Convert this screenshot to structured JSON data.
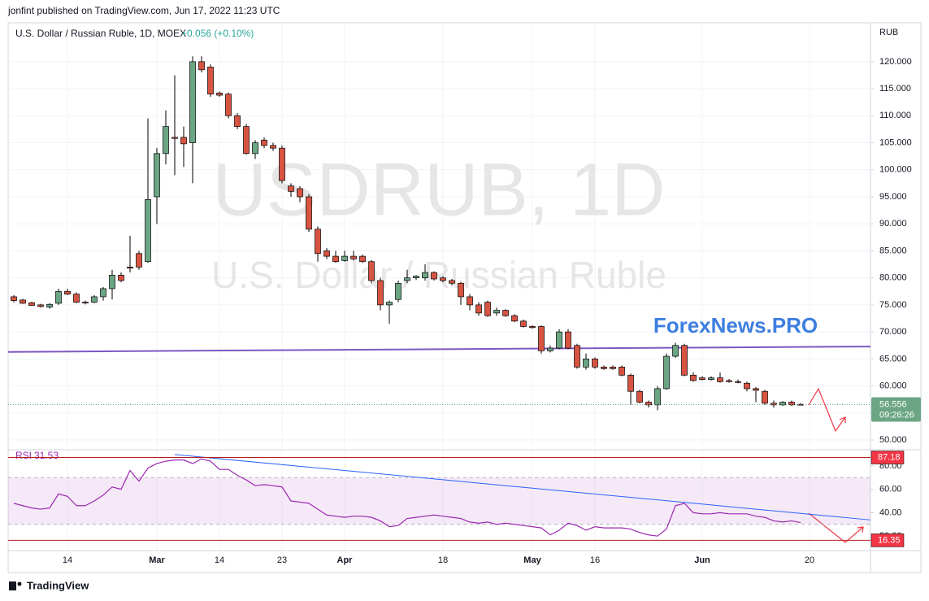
{
  "header": {
    "publisher": "jonfint published on TradingView.com, Jun 17, 2022 11:23 UTC"
  },
  "footer": {
    "logo": "TradingView"
  },
  "chart_data": [
    {
      "type": "candlestick",
      "title": "U.S. Dollar / Russian Ruble, 1D, MOEX",
      "change": "+0.056 (+0.10%)",
      "watermark": "USDRUB, 1D",
      "watermark_subtitle": "U.S. Dollar / Russian Ruble",
      "annotation": "ForexNews.PRO",
      "y_axis_label": "RUB",
      "countdown": "09:26:26",
      "up_color": "#6ba583",
      "down_color": "#d75442",
      "grid": true,
      "categories": [
        null,
        null,
        null,
        null,
        null,
        null,
        "14",
        null,
        null,
        null,
        null,
        null,
        null,
        null,
        null,
        null,
        "Mar",
        null,
        null,
        null,
        null,
        null,
        null,
        "14",
        null,
        null,
        null,
        null,
        null,
        null,
        "23",
        null,
        null,
        null,
        null,
        null,
        null,
        "Apr",
        null,
        null,
        null,
        null,
        null,
        null,
        null,
        null,
        null,
        null,
        "18",
        null,
        null,
        null,
        null,
        null,
        null,
        null,
        null,
        null,
        "May",
        null,
        null,
        null,
        null,
        null,
        null,
        "16",
        null,
        null,
        null,
        null,
        null,
        null,
        null,
        null,
        null,
        null,
        null,
        "Jun",
        null,
        null,
        null,
        null,
        null,
        null,
        null,
        null,
        null,
        null,
        null,
        "20"
      ],
      "open": [
        76.5,
        75.9,
        75.4,
        75.0,
        74.6,
        75.3,
        77.5,
        77.0,
        75.5,
        75.5,
        76.5,
        78.0,
        80.5,
        82.0,
        84.5,
        83.0,
        95.0,
        103.0,
        106.0,
        106.0,
        105.0,
        120.0,
        119.0,
        114.2,
        114.0,
        110.0,
        108.0,
        103.0,
        105.5,
        104.5,
        104.0,
        97.0,
        96.5,
        95.0,
        89.0,
        85.0,
        84.0,
        83.2,
        84.0,
        84.0,
        83.0,
        79.5,
        75.0,
        76.0,
        79.5,
        80.0,
        80.0,
        81.0,
        80.0,
        79.5,
        79.0,
        76.5,
        75.0,
        75.5,
        73.5,
        74.0,
        73.0,
        72.0,
        71.0,
        71.0,
        66.5,
        67.0,
        70.0,
        67.5,
        63.5,
        65.0,
        63.5,
        63.5,
        63.5,
        62.0,
        59.0,
        57.0,
        56.5,
        59.5,
        65.5,
        67.5,
        62.0,
        61.5,
        61.2,
        61.5,
        61.0,
        60.8,
        60.5,
        59.5,
        59.0,
        56.8,
        56.5,
        57.0,
        56.6,
        null
      ],
      "high": [
        76.8,
        76.1,
        75.6,
        75.2,
        75.3,
        78.0,
        78.0,
        77.3,
        75.8,
        76.8,
        78.3,
        81.5,
        81.0,
        87.8,
        85.0,
        109.5,
        104.0,
        111.0,
        117.5,
        108.0,
        121.0,
        121.0,
        119.5,
        114.5,
        114.3,
        110.5,
        108.5,
        105.5,
        106.0,
        105.0,
        104.5,
        97.5,
        97.0,
        95.5,
        89.5,
        85.5,
        85.0,
        85.0,
        85.0,
        84.3,
        83.3,
        80.0,
        75.8,
        79.5,
        81.5,
        80.5,
        82.5,
        81.2,
        80.3,
        79.8,
        79.3,
        77.0,
        75.5,
        75.8,
        74.5,
        74.2,
        73.3,
        72.3,
        71.2,
        71.2,
        67.5,
        70.5,
        70.5,
        67.8,
        66.0,
        65.3,
        63.8,
        63.8,
        63.8,
        62.3,
        59.3,
        57.3,
        60.0,
        66.0,
        68.0,
        67.8,
        62.5,
        61.8,
        61.8,
        62.5,
        61.3,
        61.2,
        60.8,
        59.8,
        59.3,
        57.3,
        57.2,
        57.3,
        56.8,
        null
      ],
      "low": [
        75.5,
        75.2,
        74.8,
        74.5,
        74.3,
        75.0,
        76.8,
        75.3,
        75.1,
        75.3,
        75.8,
        76.0,
        79.2,
        81.0,
        81.5,
        82.8,
        90.0,
        101.0,
        99.0,
        100.5,
        97.5,
        118.0,
        113.5,
        113.5,
        109.5,
        107.5,
        102.8,
        102.0,
        104.0,
        103.5,
        97.5,
        95.0,
        94.0,
        88.5,
        83.0,
        83.5,
        82.8,
        83.0,
        83.2,
        82.8,
        79.0,
        74.0,
        71.5,
        75.5,
        79.0,
        79.6,
        79.5,
        79.5,
        79.2,
        78.6,
        75.0,
        74.0,
        73.0,
        72.8,
        73.0,
        72.8,
        71.8,
        70.8,
        70.6,
        66.0,
        66.2,
        66.8,
        66.8,
        63.2,
        63.0,
        63.2,
        63.0,
        63.0,
        61.8,
        56.5,
        56.8,
        56.0,
        55.5,
        59.3,
        65.2,
        61.8,
        60.8,
        61.0,
        61.0,
        60.6,
        60.6,
        60.5,
        59.0,
        57.0,
        56.5,
        56.0,
        56.3,
        56.3,
        56.4,
        null
      ],
      "close": [
        75.8,
        75.3,
        74.9,
        74.7,
        75.1,
        77.5,
        77.0,
        75.5,
        75.4,
        76.5,
        78.0,
        80.5,
        79.5,
        81.8,
        82.0,
        94.5,
        103.0,
        108.0,
        105.8,
        104.8,
        120.0,
        118.5,
        114.0,
        113.8,
        110.0,
        108.0,
        103.0,
        105.0,
        104.5,
        104.0,
        98.0,
        96.0,
        95.0,
        89.0,
        84.5,
        84.0,
        83.0,
        84.0,
        83.5,
        83.0,
        79.5,
        75.0,
        75.5,
        79.0,
        80.0,
        80.3,
        81.0,
        79.8,
        79.5,
        79.0,
        76.5,
        75.0,
        73.5,
        73.0,
        74.0,
        73.0,
        72.0,
        71.0,
        70.8,
        66.5,
        67.0,
        70.0,
        67.0,
        63.5,
        65.0,
        63.5,
        63.2,
        63.2,
        62.0,
        59.0,
        57.0,
        56.5,
        59.5,
        65.5,
        67.5,
        62.0,
        61.0,
        61.2,
        61.5,
        60.8,
        60.8,
        60.7,
        59.5,
        59.2,
        56.8,
        56.5,
        57.0,
        56.5,
        56.556,
        null
      ],
      "ylim": [
        48.2,
        127.2
      ],
      "yticks": [
        {
          "value": 50,
          "label": "50.000"
        },
        {
          "value": 55,
          "label": "55.000"
        },
        {
          "value": 60,
          "label": "60.000"
        },
        {
          "value": 65,
          "label": "65.000"
        },
        {
          "value": 70,
          "label": "70.000"
        },
        {
          "value": 75,
          "label": "75.000"
        },
        {
          "value": 80,
          "label": "80.000"
        },
        {
          "value": 85,
          "label": "85.000"
        },
        {
          "value": 90,
          "label": "90.000"
        },
        {
          "value": 95,
          "label": "95.000"
        },
        {
          "value": 100,
          "label": "100.000"
        },
        {
          "value": 105,
          "label": "105.000"
        },
        {
          "value": 110,
          "label": "110.000"
        },
        {
          "value": 115,
          "label": "115.000"
        },
        {
          "value": 120,
          "label": "120.000"
        }
      ],
      "trendline": {
        "color": "#7e57c2",
        "values": [
          66.3,
          67.3
        ]
      }
    },
    {
      "type": "line",
      "title": "RSI",
      "series": [
        {
          "name": "RSI",
          "color": "#9c27b0",
          "values": [
            48,
            46,
            44,
            43,
            44,
            56,
            54,
            46,
            46,
            50,
            55,
            62,
            60,
            76,
            67,
            78,
            82,
            84,
            85,
            85,
            82,
            86,
            84,
            77,
            77,
            72,
            68,
            63,
            64,
            63,
            62,
            50,
            49,
            48,
            43,
            38,
            37,
            36,
            37,
            37,
            36,
            33,
            28,
            29,
            35,
            36,
            37,
            38,
            37,
            36,
            35,
            32,
            31,
            32,
            30,
            31,
            30,
            29,
            28,
            27,
            21,
            25,
            31,
            29,
            25,
            28,
            27,
            27,
            27,
            26,
            23,
            21,
            20,
            26,
            46,
            48,
            40,
            39,
            39,
            40,
            39,
            39,
            39,
            37,
            36,
            33,
            32,
            33,
            31.53,
            null
          ]
        }
      ],
      "ylim": [
        7.6,
        93.8
      ],
      "yticks": [
        {
          "value": 20,
          "label": "20.00"
        },
        {
          "value": 40,
          "label": "40.00"
        },
        {
          "value": 60,
          "label": "60.00"
        },
        {
          "value": 80,
          "label": "80.00"
        }
      ],
      "band": [
        30,
        70
      ],
      "hlines": [
        87.18,
        16.35
      ],
      "trendline": {
        "color": "#2962ff",
        "values": [
          89.7,
          33.8
        ]
      }
    }
  ]
}
